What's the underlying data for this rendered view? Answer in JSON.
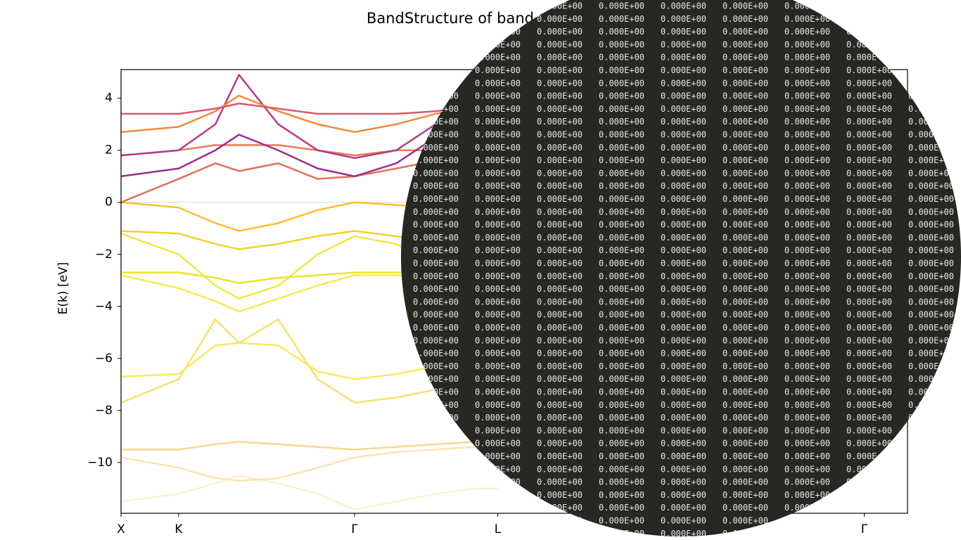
{
  "chart_data": {
    "type": "line",
    "title": "BandStructure of band",
    "ylabel": "E(k) [eV]",
    "x": [
      0,
      0.0733,
      0.12,
      0.15,
      0.2,
      0.25,
      0.297,
      0.35,
      0.4,
      0.45,
      0.479
    ],
    "xlim": [
      0,
      1
    ],
    "xticks": [
      {
        "value": 0,
        "label": "X"
      },
      {
        "value": 0.0733,
        "label": "K"
      },
      {
        "value": 0.297,
        "label": "Γ"
      },
      {
        "value": 0.479,
        "label": "L"
      },
      {
        "value": 0.945,
        "label": "Γ"
      }
    ],
    "ylim": [
      -11.95,
      5.1
    ],
    "yticks": [
      {
        "value": -10,
        "label": "−10"
      },
      {
        "value": -8,
        "label": "−8"
      },
      {
        "value": -6,
        "label": "−6"
      },
      {
        "value": -4,
        "label": "−4"
      },
      {
        "value": -2,
        "label": "−2"
      },
      0,
      2,
      4
    ],
    "fermi_level": 0,
    "series": [
      {
        "color": "#fdf0d0",
        "values": [
          -11.5,
          -11.2,
          -10.8,
          -10.5,
          -10.8,
          -11.2,
          -11.8,
          -11.5,
          -11.2,
          -11.0,
          -11.0
        ]
      },
      {
        "color": "#fbe4b0",
        "values": [
          -9.8,
          -10.2,
          -10.6,
          -10.7,
          -10.6,
          -10.2,
          -9.8,
          -9.6,
          -9.5,
          -9.4,
          -9.4
        ]
      },
      {
        "color": "#f8d890",
        "values": [
          -9.5,
          -9.5,
          -9.3,
          -9.2,
          -9.3,
          -9.4,
          -9.5,
          -9.4,
          -9.3,
          -9.2,
          -9.2
        ]
      },
      {
        "color": "#f7e070",
        "values": [
          -7.7,
          -6.8,
          -4.5,
          -5.4,
          -4.5,
          -6.8,
          -7.7,
          -7.5,
          -7.2,
          -7.0,
          -7.0
        ]
      },
      {
        "color": "#f5ea60",
        "values": [
          -6.7,
          -6.6,
          -5.5,
          -5.4,
          -5.5,
          -6.5,
          -6.8,
          -6.6,
          -6.3,
          -6.0,
          -6.0
        ]
      },
      {
        "color": "#f2ec50",
        "values": [
          -2.8,
          -3.3,
          -3.8,
          -4.2,
          -3.7,
          -3.2,
          -2.8,
          -2.8,
          -2.9,
          -3.0,
          -3.2
        ]
      },
      {
        "color": "#f0e840",
        "values": [
          -1.2,
          -2.0,
          -3.2,
          -3.7,
          -3.2,
          -2.0,
          -1.3,
          -1.6,
          -2.5,
          -3.0,
          -3.3
        ]
      },
      {
        "color": "#f0e030",
        "values": [
          -2.7,
          -2.7,
          -2.9,
          -3.1,
          -2.9,
          -2.8,
          -2.7,
          -2.7,
          -2.6,
          -2.6,
          -2.6
        ]
      },
      {
        "color": "#f5d030",
        "values": [
          -1.1,
          -1.2,
          -1.6,
          -1.8,
          -1.6,
          -1.3,
          -1.1,
          -1.3,
          -1.6,
          -1.8,
          -2.0
        ]
      },
      {
        "color": "#f8c030",
        "values": [
          0,
          -0.2,
          -0.8,
          -1.1,
          -0.8,
          -0.3,
          0,
          -0.1,
          -0.2,
          -0.3,
          -0.4
        ]
      },
      {
        "color": "#e0705a",
        "values": [
          0.0,
          0.9,
          1.5,
          1.2,
          1.5,
          0.9,
          1.0,
          1.3,
          1.6,
          1.8,
          2.0
        ]
      },
      {
        "color": "#e87a5a",
        "values": [
          1.8,
          2.0,
          2.2,
          2.2,
          2.2,
          2.0,
          1.8,
          2.0,
          2.0,
          2.0,
          2.0
        ]
      },
      {
        "color": "#a02a8c",
        "values": [
          1.0,
          1.3,
          2.0,
          2.6,
          2.0,
          1.3,
          1.0,
          1.5,
          2.5,
          3.5,
          4.0
        ]
      },
      {
        "color": "#b33c8a",
        "values": [
          1.8,
          2.0,
          3.0,
          4.9,
          3.0,
          2.0,
          1.7,
          2.0,
          3.0,
          4.5,
          5.0
        ]
      },
      {
        "color": "#f08a3a",
        "values": [
          2.7,
          2.9,
          3.5,
          4.1,
          3.5,
          3.0,
          2.7,
          3.0,
          3.4,
          3.7,
          3.7
        ]
      },
      {
        "color": "#d85a6a",
        "values": [
          3.4,
          3.4,
          3.6,
          3.8,
          3.6,
          3.4,
          3.4,
          3.4,
          3.5,
          3.7,
          3.7
        ]
      }
    ]
  },
  "overlay": {
    "cell_text": "0.000E+00"
  }
}
